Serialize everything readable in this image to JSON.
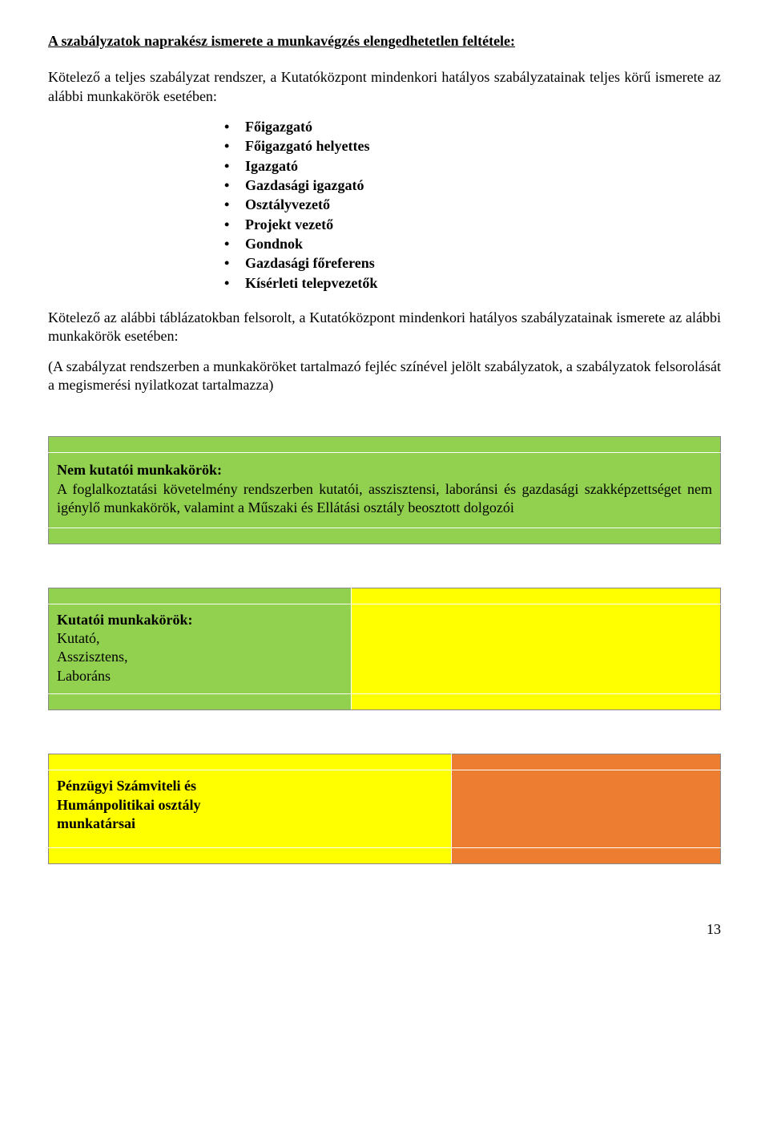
{
  "title": "A szabályzatok naprakész ismerete a munkavégzés elengedhetetlen feltétele:",
  "intro": "Kötelező a teljes szabályzat rendszer, a Kutatóközpont mindenkori hatályos szabályzatainak teljes körű ismerete az alábbi munkakörök esetében:",
  "bullets": [
    "Főigazgató",
    "Főigazgató helyettes",
    "Igazgató",
    "Gazdasági igazgató",
    "Osztályvezető",
    "Projekt vezető",
    "Gondnok",
    "Gazdasági főreferens",
    "Kísérleti telepvezetők"
  ],
  "para2": "Kötelező az alábbi táblázatokban felsorolt, a Kutatóközpont mindenkori hatályos szabályzatainak ismerete az alábbi munkakörök esetében:",
  "para3": "(A szabályzat rendszerben a munkaköröket tartalmazó fejléc színével jelölt szabályzatok, a szabályzatok felsorolását a megismerési nyilatkozat tartalmazza)",
  "box1": {
    "title": "Nem kutatói munkakörök:",
    "body": "A foglalkoztatási követelmény rendszerben kutatói, asszisztensi, laboránsi és gazdasági szakképzettséget nem igénylő munkakörök, valamint a Műszaki és Ellátási osztály beosztott dolgozói",
    "bg": "#92d050"
  },
  "box2": {
    "title": "Kutatói munkakörök:",
    "lines": [
      "Kutató,",
      "Asszisztens,",
      "Laboráns"
    ],
    "left_bg": "#92d050",
    "right_bg": "#ffff00"
  },
  "box3": {
    "title_line1": "Pénzügyi Számviteli és",
    "title_line2": "Humánpolitikai osztály",
    "title_line3": "munkatársai",
    "left_bg": "#ffff00",
    "right_bg": "#ed7d31"
  },
  "page_number": "13",
  "colors": {
    "green": "#92d050",
    "yellow": "#ffff00",
    "orange": "#ed7d31",
    "border": "#888888",
    "inner_border": "#ffffff",
    "text": "#000000",
    "background": "#ffffff"
  },
  "typography": {
    "font_family": "Times New Roman",
    "body_size_pt": 13,
    "title_weight": "bold",
    "title_decoration": "underline"
  }
}
